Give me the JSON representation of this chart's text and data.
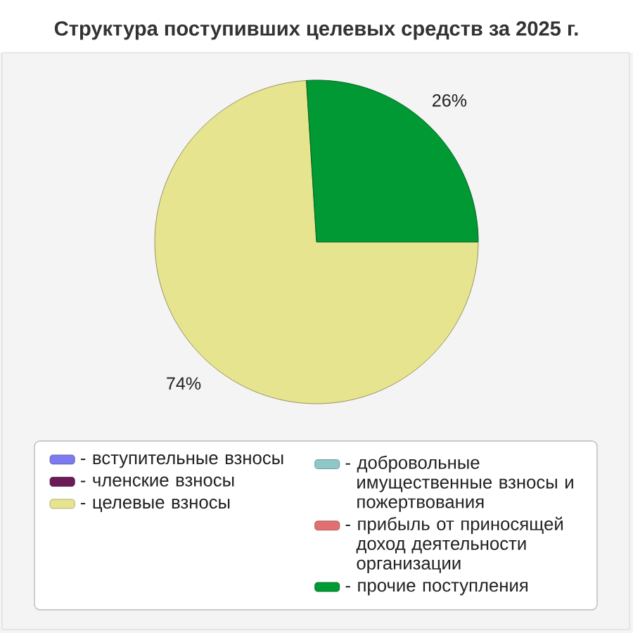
{
  "chart_data": {
    "type": "pie",
    "title": "Структура поступивших целевых средств за 2025 г.",
    "categories": [
      "- вступительные взносы",
      "- членские взносы",
      "- целевые взносы",
      "- добровольные имущественные взносы и пожертвования",
      "- прибыль от приносящей доход деятельности организации",
      "- прочие поступления"
    ],
    "values": [
      0,
      0,
      74,
      0,
      0,
      26
    ],
    "colors": [
      "#7b7bef",
      "#6b1c56",
      "#e6e48f",
      "#8dc8c8",
      "#e07070",
      "#009933"
    ],
    "value_labels": [
      null,
      null,
      "74%",
      null,
      null,
      "26%"
    ],
    "legend": "bottom"
  }
}
